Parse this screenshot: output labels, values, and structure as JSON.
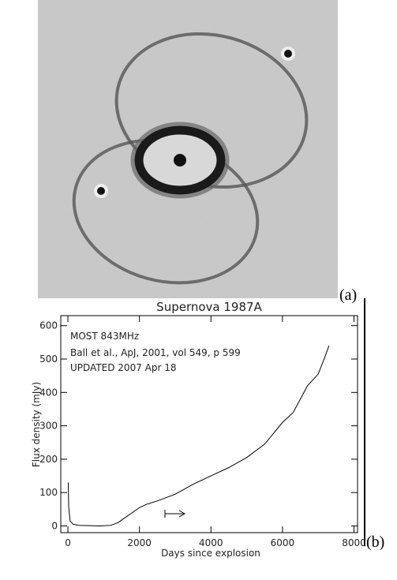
{
  "panel_labels": [
    "(a)",
    "(b)"
  ],
  "chart_data": {
    "type": "line",
    "title": "Supernova 1987A",
    "xlabel": "Days since explosion",
    "ylabel": "Flux density (mJy)",
    "annotations": [
      "MOST 843MHz",
      "Ball et al., ApJ, 2001, vol 549, p 599",
      "UPDATED 2007 Apr 18"
    ],
    "xlim": [
      -200,
      8100
    ],
    "ylim": [
      -20,
      630
    ],
    "xticks": [
      0,
      2000,
      4000,
      6000,
      8000
    ],
    "yticks": [
      0,
      100,
      200,
      300,
      400,
      500,
      600
    ],
    "color": "#000000",
    "x": [
      10,
      20,
      60,
      150,
      300,
      600,
      900,
      1200,
      1400,
      1600,
      1800,
      2000,
      2200,
      2500,
      3000,
      3500,
      4000,
      4500,
      5000,
      5500,
      6000,
      6300,
      6500,
      6700,
      7000,
      7200,
      7300
    ],
    "values": [
      130,
      60,
      15,
      5,
      2,
      1,
      0,
      2,
      10,
      25,
      40,
      55,
      65,
      75,
      95,
      125,
      150,
      175,
      205,
      245,
      310,
      340,
      380,
      420,
      455,
      510,
      540
    ]
  }
}
